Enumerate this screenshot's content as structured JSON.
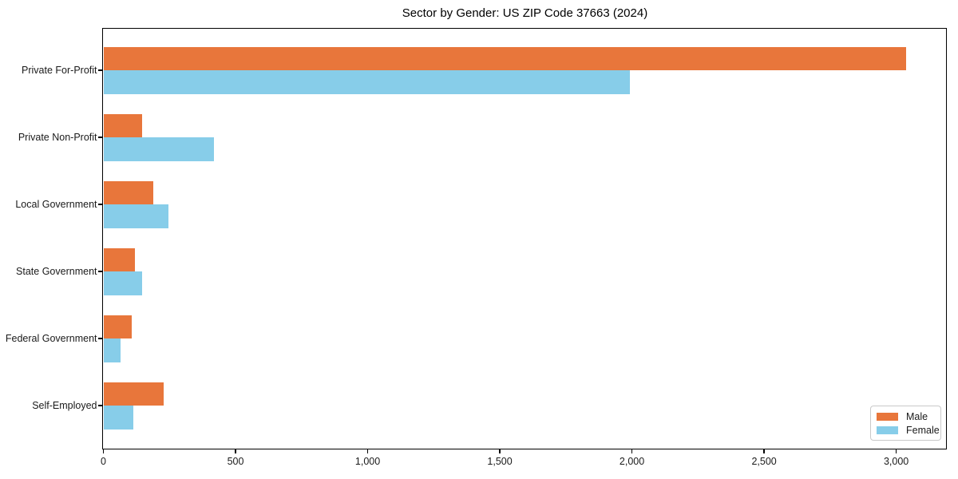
{
  "chart_data": {
    "type": "bar",
    "orientation": "horizontal",
    "title": "Sector by Gender: US ZIP Code 37663 (2024)",
    "categories": [
      "Private For-Profit",
      "Private Non-Profit",
      "Local Government",
      "State Government",
      "Federal Government",
      "Self-Employed"
    ],
    "series": [
      {
        "name": "Male",
        "color": "#e8763b",
        "values": [
          3038,
          145,
          189,
          120,
          108,
          229
        ]
      },
      {
        "name": "Female",
        "color": "#87cde9",
        "values": [
          1992,
          417,
          246,
          145,
          66,
          114
        ]
      }
    ],
    "xlabel": "",
    "ylabel": "",
    "xlim": [
      0,
      3190
    ],
    "x_ticks": [
      0,
      500,
      1000,
      1500,
      2000,
      2500,
      3000
    ],
    "x_tick_labels": [
      "0",
      "500",
      "1,000",
      "1,500",
      "2,000",
      "2,500",
      "3,000"
    ],
    "grid": false,
    "legend": {
      "position": "lower-right",
      "items": [
        "Male",
        "Female"
      ]
    }
  },
  "colors": {
    "male": "#e8763b",
    "female": "#87cde9",
    "spine": "#000000",
    "text": "#1a1a1a",
    "legend_border": "#c9c9c9"
  }
}
